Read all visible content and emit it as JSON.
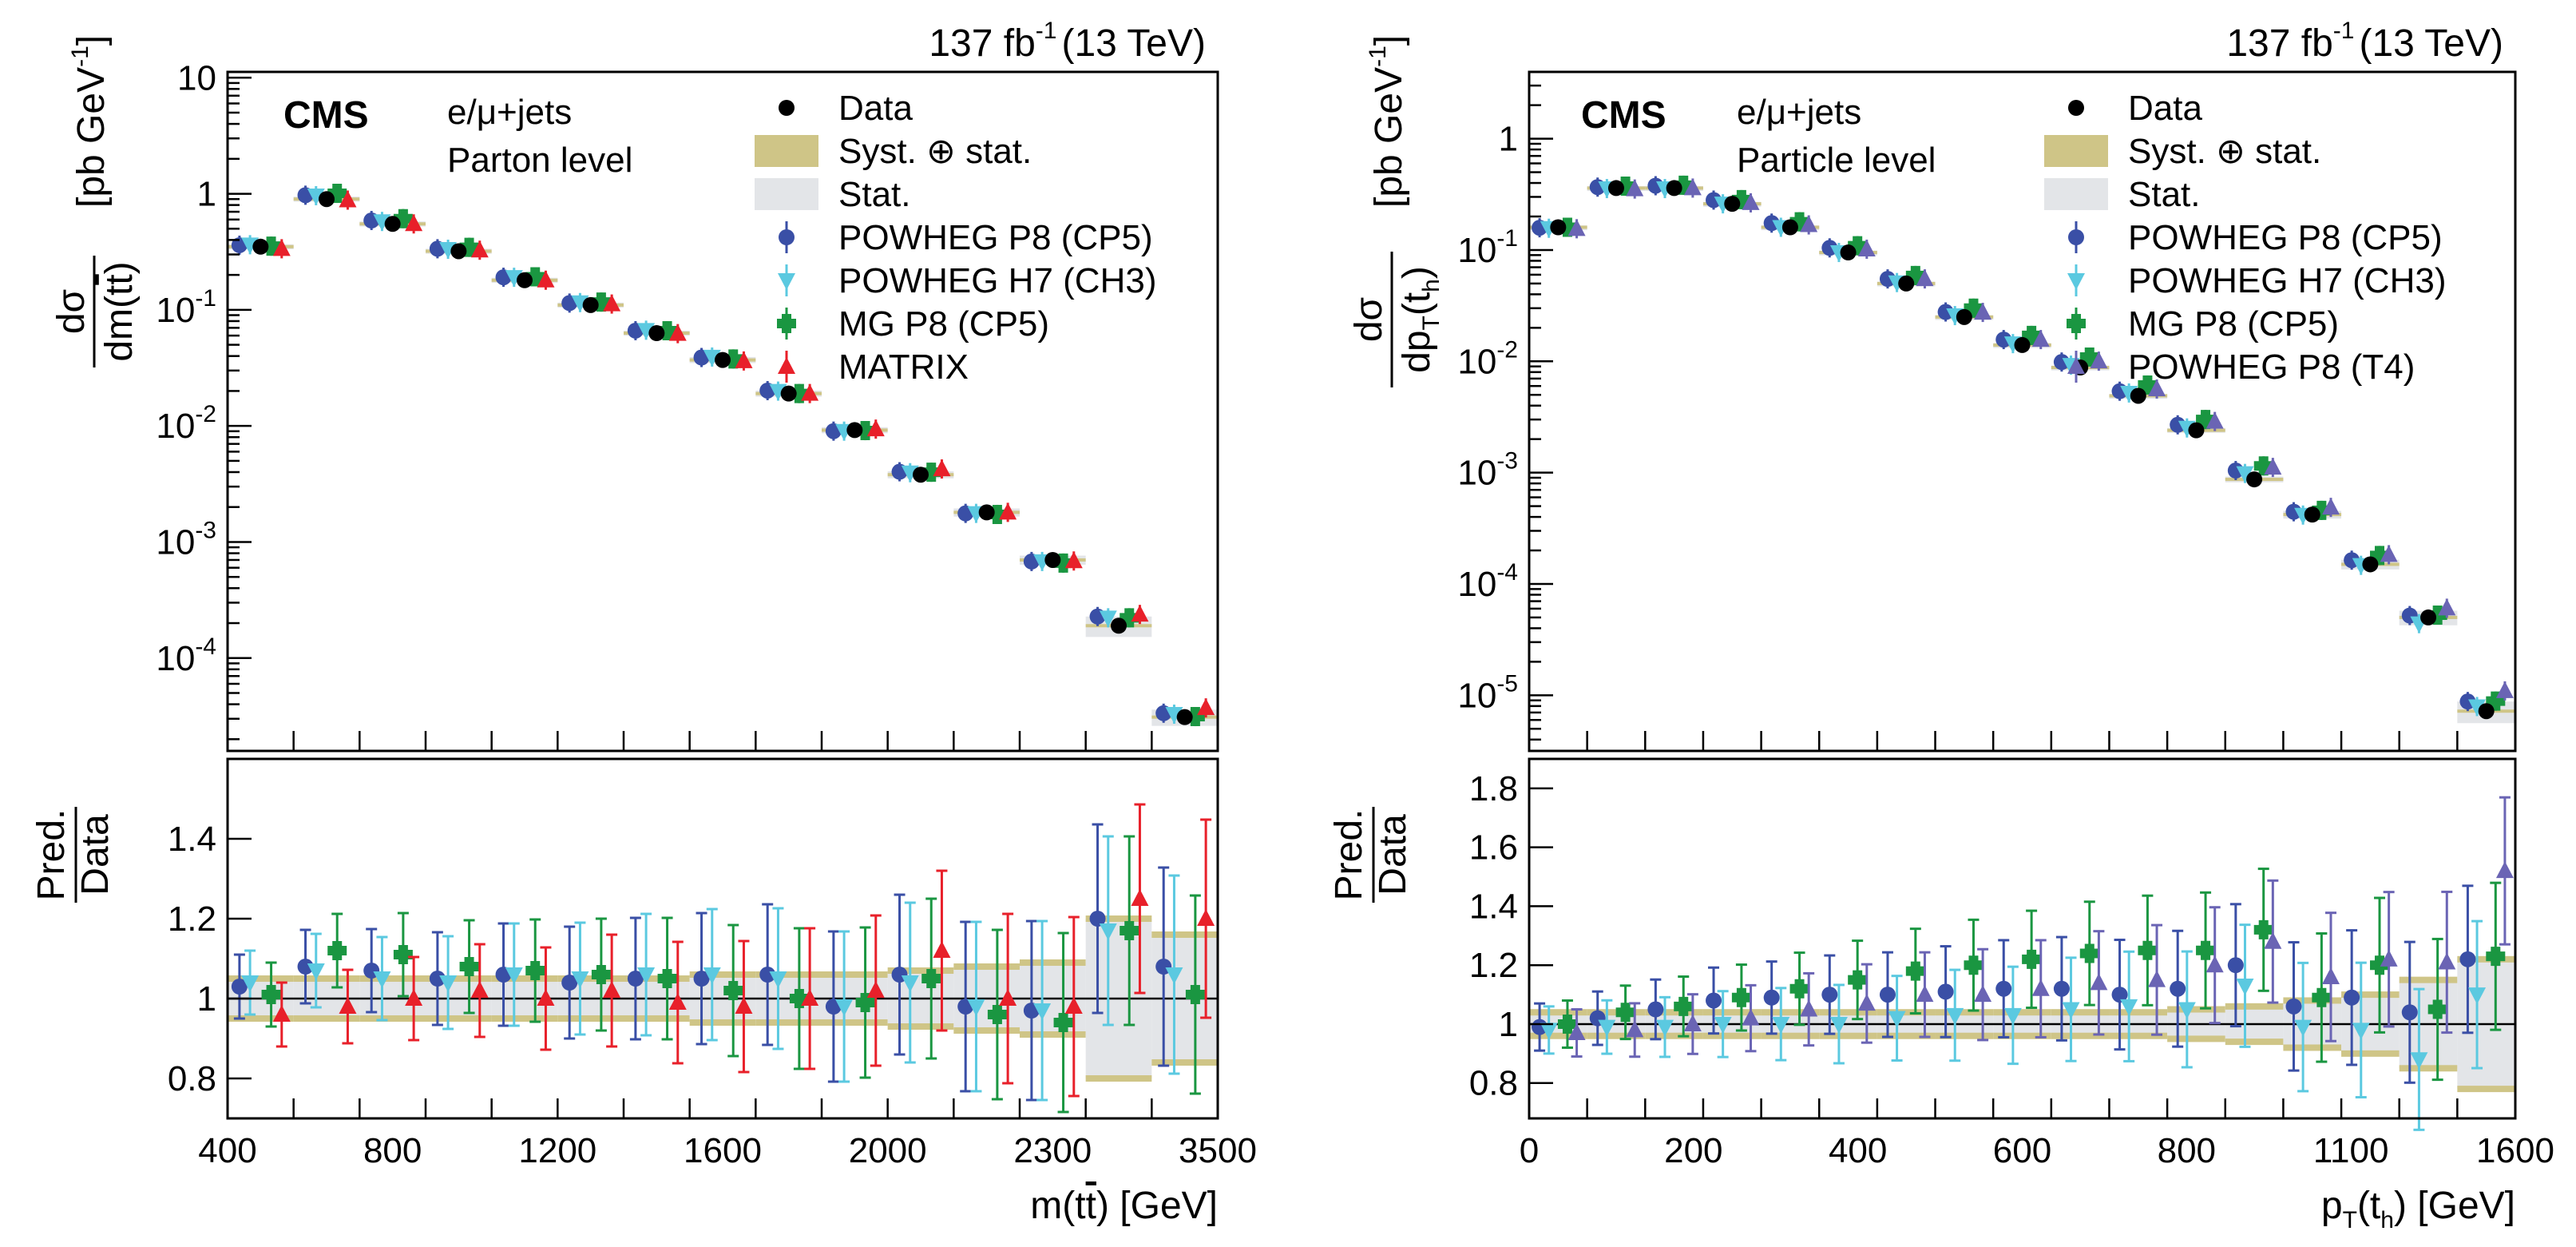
{
  "colors": {
    "data": "#000000",
    "powheg_p8": "#3a4fa6",
    "powheg_h7": "#5bc9e0",
    "mg_p8": "#1a9641",
    "matrix": "#e8202a",
    "powheg_t4": "#6a64b4",
    "syst_band": "#cfc587",
    "stat_band": "#e3e5e8",
    "unity_line": "#1f2f88"
  },
  "chart_data": [
    {
      "type": "scatter",
      "panel": "left",
      "luminosity": "137 fb",
      "lumi_exp": "-1",
      "energy": "(13 TeV)",
      "cms_label": "CMS",
      "channel": "e/μ+jets",
      "level": "Parton level",
      "ylabel_num": "dσ",
      "ylabel_den_pre": "dm(t",
      "ylabel_den_bar": "t",
      "ylabel_den_post": ")",
      "yunit": "[pb GeV",
      "yunit_exp": "-1",
      "yunit_close": "]",
      "ratio_label_num": "Pred.",
      "ratio_label_den": "Data",
      "xlabel_pre": "m(t",
      "xlabel_bar": "t",
      "xlabel_post": ") [GeV]",
      "x_tick_labels": [
        "400",
        "800",
        "1200",
        "1600",
        "2000",
        "2300",
        "3500"
      ],
      "y_tick_labels": [
        {
          "mant": "10",
          "exp": "-4",
          "logv": -4
        },
        {
          "mant": "10",
          "exp": "-3",
          "logv": -3
        },
        {
          "mant": "10",
          "exp": "-2",
          "logv": -2
        },
        {
          "mant": "10",
          "exp": "-1",
          "logv": -1
        },
        {
          "mant": "1",
          "exp": "",
          "logv": 0
        },
        {
          "mant": "10",
          "exp": "",
          "logv": 1
        }
      ],
      "ratio_ylim": [
        0.7,
        1.6
      ],
      "ratio_ticks": [
        "0.8",
        "1",
        "1.2",
        "1.4"
      ],
      "ratio_tick_values": [
        0.8,
        1.0,
        1.2,
        1.4
      ],
      "legend": [
        {
          "key": "data",
          "label": "Data",
          "marker": "circle"
        },
        {
          "key": "syst",
          "label": "Syst. ⊕ stat.",
          "marker": "band-syst"
        },
        {
          "key": "stat",
          "label": "Stat.",
          "marker": "band-stat"
        },
        {
          "key": "powheg_p8",
          "label": "POWHEG P8 (CP5)",
          "marker": "circle"
        },
        {
          "key": "powheg_h7",
          "label": "POWHEG H7 (CH3)",
          "marker": "tri-down"
        },
        {
          "key": "mg_p8",
          "label": "MG P8 (CP5)",
          "marker": "cross"
        },
        {
          "key": "matrix",
          "label": "MATRIX",
          "marker": "tri-up"
        }
      ],
      "series": [
        {
          "key": "data",
          "name": "Data",
          "values": [
            0.35,
            0.9,
            0.55,
            0.32,
            0.18,
            0.11,
            0.063,
            0.037,
            0.019,
            0.0092,
            0.0038,
            0.0018,
            0.0007,
            0.00019,
            3.1e-05
          ]
        },
        {
          "key": "powheg_p8",
          "name": "POWHEG P8 (CP5)",
          "ratios": [
            1.03,
            1.08,
            1.07,
            1.05,
            1.06,
            1.04,
            1.05,
            1.05,
            1.06,
            0.98,
            1.06,
            0.98,
            0.97,
            1.2,
            1.08
          ]
        },
        {
          "key": "powheg_h7",
          "name": "POWHEG H7 (CH3)",
          "ratios": [
            1.04,
            1.07,
            1.05,
            1.04,
            1.06,
            1.05,
            1.06,
            1.06,
            1.05,
            0.98,
            1.04,
            0.98,
            0.97,
            1.17,
            1.06
          ]
        },
        {
          "key": "mg_p8",
          "name": "MG P8 (CP5)",
          "ratios": [
            1.01,
            1.12,
            1.11,
            1.08,
            1.07,
            1.06,
            1.05,
            1.02,
            1.0,
            0.99,
            1.05,
            0.96,
            0.94,
            1.17,
            1.01
          ]
        },
        {
          "key": "matrix",
          "name": "MATRIX",
          "ratios": [
            0.96,
            0.98,
            1.0,
            1.02,
            1.0,
            1.02,
            0.99,
            0.98,
            1.0,
            1.02,
            1.12,
            1.0,
            0.98,
            1.25,
            1.2
          ]
        }
      ],
      "ratio_uncertainty": {
        "syst_half_width": [
          0.05,
          0.05,
          0.05,
          0.05,
          0.05,
          0.05,
          0.05,
          0.06,
          0.06,
          0.06,
          0.07,
          0.08,
          0.09,
          0.2,
          0.16
        ],
        "stat_half_width": [
          0.01,
          0.01,
          0.01,
          0.01,
          0.01,
          0.01,
          0.01,
          0.01,
          0.015,
          0.02,
          0.03,
          0.04,
          0.06,
          0.2,
          0.16
        ]
      }
    },
    {
      "type": "scatter",
      "panel": "right",
      "luminosity": "137 fb",
      "lumi_exp": "-1",
      "energy": "(13 TeV)",
      "cms_label": "CMS",
      "channel": "e/μ+jets",
      "level": "Particle level",
      "ylabel_num": "dσ",
      "ylabel_den_pre": "dp",
      "ylabel_den_sub": "T",
      "ylabel_den_mid": "(t",
      "ylabel_den_sub2": "h",
      "ylabel_den_post": ")",
      "yunit": "[pb GeV",
      "yunit_exp": "-1",
      "yunit_close": "]",
      "ratio_label_num": "Pred.",
      "ratio_label_den": "Data",
      "xlabel_pre": "p",
      "xlabel_sub": "T",
      "xlabel_mid": "(t",
      "xlabel_sub2": "h",
      "xlabel_post": ") [GeV]",
      "x_tick_labels": [
        "0",
        "200",
        "400",
        "600",
        "800",
        "1100",
        "1600"
      ],
      "y_tick_labels": [
        {
          "mant": "10",
          "exp": "-5",
          "logv": -5
        },
        {
          "mant": "10",
          "exp": "-4",
          "logv": -4
        },
        {
          "mant": "10",
          "exp": "-3",
          "logv": -3
        },
        {
          "mant": "10",
          "exp": "-2",
          "logv": -2
        },
        {
          "mant": "10",
          "exp": "-1",
          "logv": -1
        },
        {
          "mant": "1",
          "exp": "",
          "logv": 0
        }
      ],
      "ratio_ylim": [
        0.68,
        1.9
      ],
      "ratio_ticks": [
        "0.8",
        "1",
        "1.2",
        "1.4",
        "1.6",
        "1.8"
      ],
      "ratio_tick_values": [
        0.8,
        1.0,
        1.2,
        1.4,
        1.6,
        1.8
      ],
      "legend": [
        {
          "key": "data",
          "label": "Data",
          "marker": "circle"
        },
        {
          "key": "syst",
          "label": "Syst. ⊕ stat.",
          "marker": "band-syst"
        },
        {
          "key": "stat",
          "label": "Stat.",
          "marker": "band-stat"
        },
        {
          "key": "powheg_p8",
          "label": "POWHEG P8 (CP5)",
          "marker": "circle"
        },
        {
          "key": "powheg_h7",
          "label": "POWHEG H7 (CH3)",
          "marker": "tri-down"
        },
        {
          "key": "mg_p8",
          "label": "MG P8 (CP5)",
          "marker": "cross"
        },
        {
          "key": "powheg_t4",
          "label": "POWHEG P8 (T4)",
          "marker": "tri-up"
        }
      ],
      "series": [
        {
          "key": "data",
          "name": "Data",
          "values": [
            0.16,
            0.36,
            0.36,
            0.26,
            0.16,
            0.095,
            0.05,
            0.025,
            0.014,
            0.0088,
            0.0049,
            0.0024,
            0.00087,
            0.00042,
            0.00015,
            5e-05,
            7.2e-06
          ]
        },
        {
          "key": "powheg_p8",
          "name": "POWHEG P8 (CP5)",
          "ratios": [
            0.99,
            1.02,
            1.05,
            1.08,
            1.09,
            1.1,
            1.1,
            1.11,
            1.12,
            1.12,
            1.1,
            1.12,
            1.2,
            1.06,
            1.09,
            1.04,
            1.22
          ]
        },
        {
          "key": "powheg_h7",
          "name": "POWHEG H7 (CH3)",
          "ratios": [
            0.98,
            0.99,
            0.99,
            1.0,
            1.0,
            1.0,
            1.02,
            1.03,
            1.03,
            1.05,
            1.06,
            1.05,
            1.13,
            0.99,
            0.98,
            0.88,
            1.1
          ]
        },
        {
          "key": "mg_p8",
          "name": "MG P8 (CP5)",
          "ratios": [
            1.0,
            1.04,
            1.06,
            1.09,
            1.12,
            1.15,
            1.18,
            1.2,
            1.22,
            1.24,
            1.25,
            1.25,
            1.32,
            1.09,
            1.2,
            1.05,
            1.23
          ]
        },
        {
          "key": "powheg_t4",
          "name": "POWHEG P8 (T4)",
          "ratios": [
            0.97,
            0.98,
            1.0,
            1.02,
            1.05,
            1.07,
            1.1,
            1.1,
            1.12,
            1.14,
            1.15,
            1.2,
            1.28,
            1.16,
            1.22,
            1.21,
            1.52
          ]
        }
      ],
      "ratio_uncertainty": {
        "syst_half_width": [
          0.04,
          0.04,
          0.04,
          0.04,
          0.04,
          0.04,
          0.04,
          0.04,
          0.04,
          0.04,
          0.04,
          0.05,
          0.06,
          0.08,
          0.1,
          0.15,
          0.22
        ],
        "stat_half_width": [
          0.01,
          0.01,
          0.01,
          0.01,
          0.01,
          0.01,
          0.01,
          0.01,
          0.015,
          0.015,
          0.02,
          0.03,
          0.04,
          0.06,
          0.1,
          0.15,
          0.2
        ]
      }
    }
  ]
}
